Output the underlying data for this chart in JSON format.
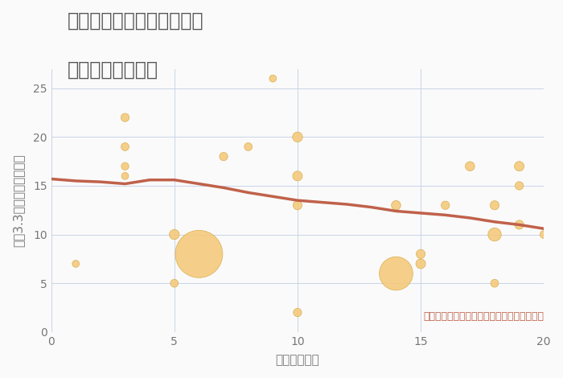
{
  "title_line1": "三重県四日市市羽津山町の",
  "title_line2": "駅距離別土地価格",
  "xlabel": "駅距離（分）",
  "ylabel": "坪（3.3㎡）単価（万円）",
  "annotation": "円の大きさは、取引のあった物件面積を示す",
  "xlim": [
    0,
    20
  ],
  "ylim": [
    0,
    27
  ],
  "yticks": [
    0,
    5,
    10,
    15,
    20,
    25
  ],
  "xticks": [
    0,
    5,
    10,
    15,
    20
  ],
  "scatter_x": [
    1,
    3,
    3,
    3,
    3,
    5,
    5,
    6,
    7,
    8,
    9,
    10,
    10,
    10,
    10,
    14,
    14,
    15,
    15,
    16,
    17,
    18,
    18,
    18,
    19,
    19,
    19,
    20
  ],
  "scatter_y": [
    7,
    22,
    19,
    17,
    16,
    5,
    10,
    8,
    18,
    19,
    26,
    20,
    16,
    13,
    2,
    13,
    6,
    7,
    8,
    13,
    17,
    10,
    5,
    13,
    11,
    17,
    15,
    10
  ],
  "scatter_size": [
    40,
    55,
    50,
    45,
    40,
    50,
    80,
    1800,
    55,
    50,
    40,
    80,
    75,
    65,
    55,
    70,
    900,
    75,
    65,
    55,
    70,
    140,
    50,
    65,
    65,
    75,
    55,
    50
  ],
  "trend_x": [
    0,
    1,
    2,
    3,
    4,
    5,
    6,
    7,
    8,
    9,
    10,
    11,
    12,
    13,
    14,
    15,
    16,
    17,
    18,
    19,
    20
  ],
  "trend_y": [
    15.7,
    15.5,
    15.4,
    15.2,
    15.6,
    15.6,
    15.2,
    14.8,
    14.3,
    13.9,
    13.5,
    13.3,
    13.1,
    12.8,
    12.4,
    12.2,
    12.0,
    11.7,
    11.3,
    11.0,
    10.6
  ],
  "scatter_color": "#F5C97A",
  "scatter_edge_color": "#D4A843",
  "trend_color": "#C0614A",
  "bg_color": "#FAFAFA",
  "grid_color": "#C8D4E8",
  "title_color": "#555555",
  "label_color": "#777777",
  "annotation_color": "#C0614A",
  "title_fontsize": 17,
  "label_fontsize": 11,
  "annotation_fontsize": 9
}
